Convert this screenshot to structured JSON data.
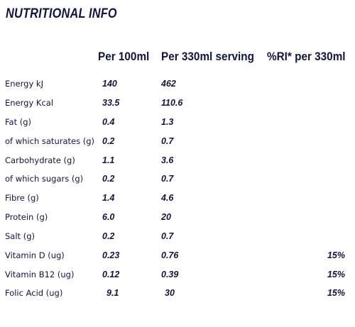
{
  "title": "NUTRITIONAL INFO",
  "headers": {
    "per100": "Per 100ml",
    "perServing": "Per 330ml serving",
    "ri": "%RI* per 330ml"
  },
  "rows": [
    {
      "label": "Energy kJ",
      "per100": "140",
      "serving": "462",
      "ri": ""
    },
    {
      "label": "Energy Kcal",
      "per100": "33.5",
      "serving": "110.6",
      "ri": ""
    },
    {
      "label": "Fat (g)",
      "per100": "0.4",
      "serving": "1.3",
      "ri": ""
    },
    {
      "label": "of which saturates (g)",
      "per100": "0.2",
      "serving": "0.7",
      "ri": ""
    },
    {
      "label": "Carbohydrate (g)",
      "per100": "1.1",
      "serving": "3.6",
      "ri": ""
    },
    {
      "label": "of which sugars (g)",
      "per100": "0.2",
      "serving": "0.7",
      "ri": ""
    },
    {
      "label": "Fibre (g)",
      "per100": "1.4",
      "serving": "4.6",
      "ri": ""
    },
    {
      "label": "Protein (g)",
      "per100": "6.0",
      "serving": "20",
      "ri": ""
    },
    {
      "label": "Salt (g)",
      "per100": "0.2",
      "serving": "0.7",
      "ri": ""
    },
    {
      "label": "Vitamin D (ug)",
      "per100": "0.23",
      "serving": "0.76",
      "ri": "15%"
    },
    {
      "label": "Vitamin B12 (ug)",
      "per100": "0.12",
      "serving": "0.39",
      "ri": "15%"
    },
    {
      "label": "Folic Acid (ug)",
      "per100": "9.1",
      "serving": "30",
      "ri": "15%"
    }
  ]
}
